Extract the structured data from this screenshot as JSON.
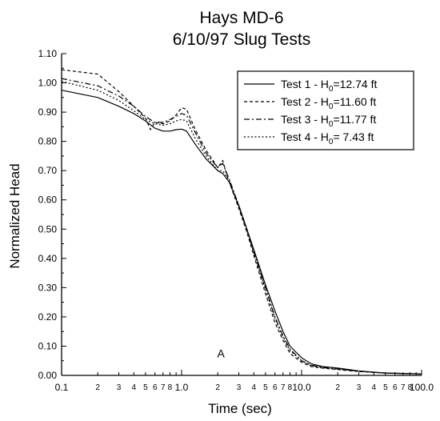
{
  "chart_data": {
    "type": "line",
    "title_lines": [
      "Hays MD-6",
      "6/10/97 Slug Tests"
    ],
    "xlabel": "Time (sec)",
    "ylabel": "Normalized Head",
    "x_scale": "log",
    "xlim": [
      0.1,
      100.0
    ],
    "ylim": [
      0.0,
      1.1
    ],
    "x_major_ticks": [
      {
        "value": 0.1,
        "label": "0.1"
      },
      {
        "value": 1.0,
        "label": "1.0"
      },
      {
        "value": 10.0,
        "label": "10.0"
      },
      {
        "value": 100.0,
        "label": "100.0"
      }
    ],
    "x_minor_labels": [
      "2",
      "3",
      "4",
      "5",
      "6",
      "7",
      "8"
    ],
    "y_ticks": [
      {
        "value": 0.0,
        "label": "0.00"
      },
      {
        "value": 0.1,
        "label": "0.10"
      },
      {
        "value": 0.2,
        "label": "0.20"
      },
      {
        "value": 0.3,
        "label": "0.30"
      },
      {
        "value": 0.4,
        "label": "0.40"
      },
      {
        "value": 0.5,
        "label": "0.50"
      },
      {
        "value": 0.6,
        "label": "0.60"
      },
      {
        "value": 0.7,
        "label": "0.70"
      },
      {
        "value": 0.8,
        "label": "0.80"
      },
      {
        "value": 0.9,
        "label": "0.90"
      },
      {
        "value": 1.0,
        "label": "1.00"
      },
      {
        "value": 1.1,
        "label": "1.10"
      }
    ],
    "grid": false,
    "legend_position": "top-right",
    "annotations": [
      {
        "text": "A",
        "x": 2.0,
        "y": 0.04
      }
    ],
    "series": [
      {
        "name_prefix": "Test 1 - H",
        "name_sub": "0",
        "name_suffix": "=12.74 ft",
        "dash": "solid",
        "points": [
          [
            0.1,
            0.975
          ],
          [
            0.2,
            0.95
          ],
          [
            0.3,
            0.92
          ],
          [
            0.4,
            0.895
          ],
          [
            0.5,
            0.87
          ],
          [
            0.6,
            0.845
          ],
          [
            0.7,
            0.835
          ],
          [
            0.8,
            0.835
          ],
          [
            0.9,
            0.84
          ],
          [
            1.0,
            0.842
          ],
          [
            1.1,
            0.835
          ],
          [
            1.3,
            0.79
          ],
          [
            1.6,
            0.74
          ],
          [
            2.0,
            0.7
          ],
          [
            2.2,
            0.69
          ],
          [
            2.5,
            0.66
          ],
          [
            3.0,
            0.58
          ],
          [
            3.5,
            0.5
          ],
          [
            4.0,
            0.43
          ],
          [
            5.0,
            0.31
          ],
          [
            6.0,
            0.22
          ],
          [
            7.0,
            0.15
          ],
          [
            8.0,
            0.1
          ],
          [
            10.0,
            0.06
          ],
          [
            12.0,
            0.04
          ],
          [
            15.0,
            0.03
          ],
          [
            20.0,
            0.025
          ],
          [
            30.0,
            0.015
          ],
          [
            50.0,
            0.008
          ],
          [
            100.0,
            0.005
          ]
        ]
      },
      {
        "name_prefix": "Test 2 - H",
        "name_sub": "0",
        "name_suffix": "=11.60 ft",
        "dash": "dashed",
        "points": [
          [
            0.1,
            1.045
          ],
          [
            0.2,
            1.03
          ],
          [
            0.3,
            0.97
          ],
          [
            0.4,
            0.92
          ],
          [
            0.5,
            0.88
          ],
          [
            0.55,
            0.84
          ],
          [
            0.6,
            0.865
          ],
          [
            0.7,
            0.86
          ],
          [
            0.8,
            0.87
          ],
          [
            0.9,
            0.89
          ],
          [
            1.0,
            0.915
          ],
          [
            1.1,
            0.91
          ],
          [
            1.3,
            0.84
          ],
          [
            1.6,
            0.77
          ],
          [
            2.0,
            0.71
          ],
          [
            2.2,
            0.735
          ],
          [
            2.4,
            0.68
          ],
          [
            3.0,
            0.57
          ],
          [
            3.5,
            0.49
          ],
          [
            4.0,
            0.41
          ],
          [
            5.0,
            0.28
          ],
          [
            6.0,
            0.18
          ],
          [
            7.0,
            0.12
          ],
          [
            8.0,
            0.075
          ],
          [
            10.0,
            0.045
          ],
          [
            12.0,
            0.03
          ],
          [
            15.0,
            0.025
          ],
          [
            20.0,
            0.02
          ],
          [
            30.0,
            0.013
          ],
          [
            50.0,
            0.008
          ],
          [
            100.0,
            0.005
          ]
        ]
      },
      {
        "name_prefix": "Test 3 - H",
        "name_sub": "0",
        "name_suffix": "=11.77 ft",
        "dash": "dashdot",
        "points": [
          [
            0.1,
            1.015
          ],
          [
            0.2,
            0.99
          ],
          [
            0.3,
            0.955
          ],
          [
            0.4,
            0.92
          ],
          [
            0.5,
            0.885
          ],
          [
            0.6,
            0.865
          ],
          [
            0.7,
            0.865
          ],
          [
            0.8,
            0.875
          ],
          [
            0.9,
            0.885
          ],
          [
            1.0,
            0.895
          ],
          [
            1.1,
            0.89
          ],
          [
            1.3,
            0.83
          ],
          [
            1.6,
            0.76
          ],
          [
            2.0,
            0.71
          ],
          [
            2.2,
            0.725
          ],
          [
            2.5,
            0.67
          ],
          [
            3.0,
            0.58
          ],
          [
            3.5,
            0.5
          ],
          [
            4.0,
            0.42
          ],
          [
            5.0,
            0.3
          ],
          [
            6.0,
            0.2
          ],
          [
            7.0,
            0.135
          ],
          [
            8.0,
            0.09
          ],
          [
            10.0,
            0.05
          ],
          [
            12.0,
            0.035
          ],
          [
            15.0,
            0.027
          ],
          [
            20.0,
            0.022
          ],
          [
            30.0,
            0.014
          ],
          [
            50.0,
            0.008
          ],
          [
            100.0,
            0.005
          ]
        ]
      },
      {
        "name_prefix": "Test 4 - H",
        "name_sub": "0",
        "name_suffix": "= 7.43 ft",
        "dash": "dotted",
        "points": [
          [
            0.1,
            1.005
          ],
          [
            0.2,
            0.975
          ],
          [
            0.3,
            0.94
          ],
          [
            0.4,
            0.905
          ],
          [
            0.5,
            0.875
          ],
          [
            0.6,
            0.86
          ],
          [
            0.7,
            0.855
          ],
          [
            0.8,
            0.86
          ],
          [
            0.9,
            0.87
          ],
          [
            1.0,
            0.875
          ],
          [
            1.1,
            0.87
          ],
          [
            1.3,
            0.81
          ],
          [
            1.6,
            0.75
          ],
          [
            2.0,
            0.7
          ],
          [
            2.2,
            0.7
          ],
          [
            2.5,
            0.665
          ],
          [
            3.0,
            0.575
          ],
          [
            3.5,
            0.495
          ],
          [
            4.0,
            0.42
          ],
          [
            5.0,
            0.295
          ],
          [
            6.0,
            0.195
          ],
          [
            7.0,
            0.13
          ],
          [
            8.0,
            0.085
          ],
          [
            10.0,
            0.05
          ],
          [
            12.0,
            0.033
          ],
          [
            15.0,
            0.026
          ],
          [
            20.0,
            0.021
          ],
          [
            30.0,
            0.014
          ],
          [
            50.0,
            0.008
          ],
          [
            100.0,
            0.005
          ]
        ]
      }
    ]
  }
}
